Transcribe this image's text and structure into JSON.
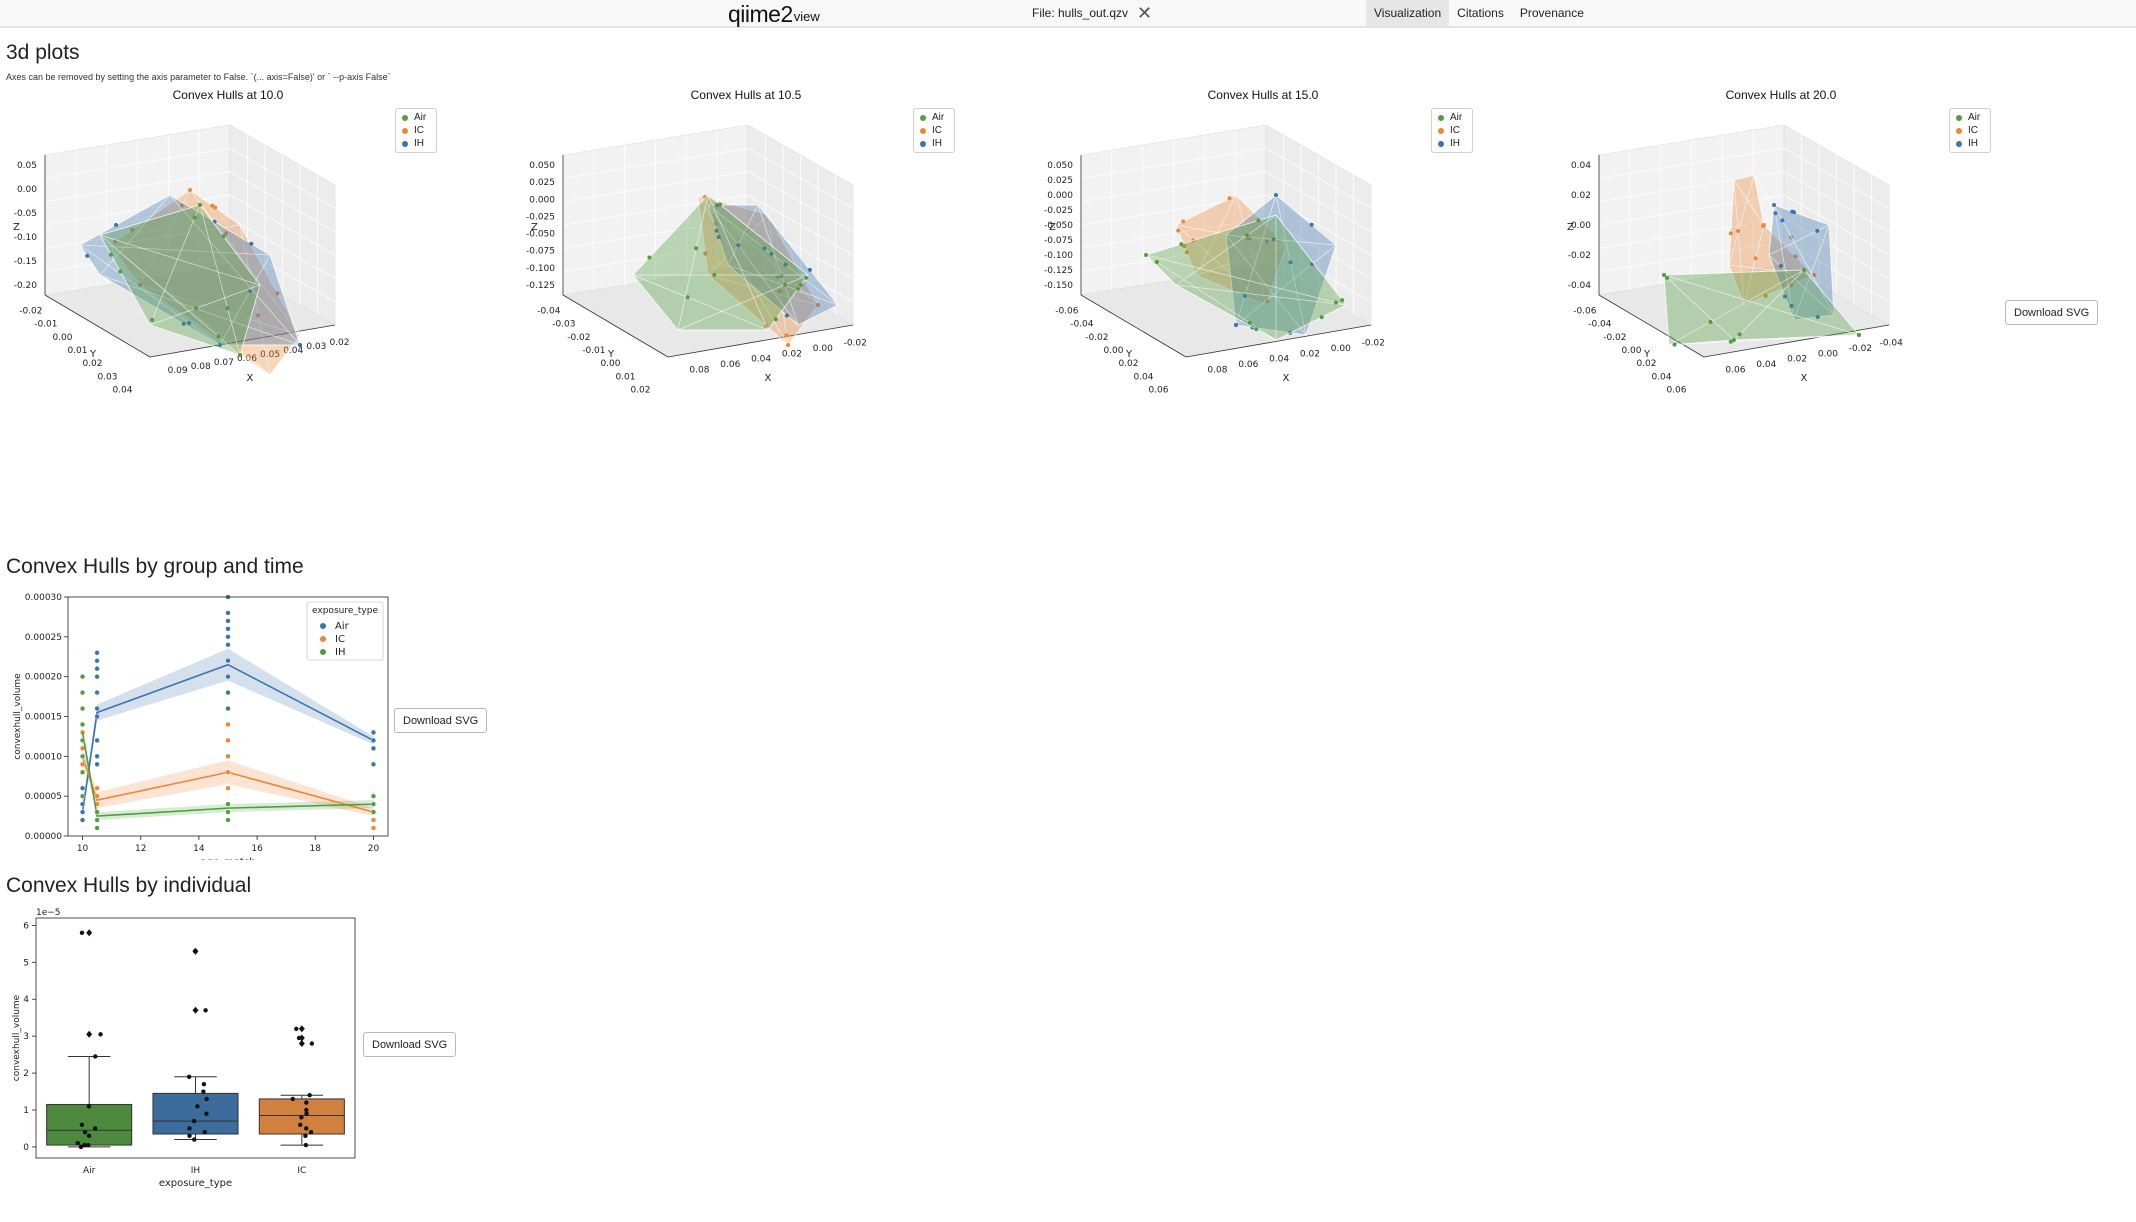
{
  "header": {
    "logo_main": "qiime2",
    "logo_sub": "view",
    "file_label": "File: hulls_out.qzv",
    "tabs": [
      {
        "label": "Visualization",
        "active": true
      },
      {
        "label": "Citations",
        "active": false
      },
      {
        "label": "Provenance",
        "active": false
      }
    ]
  },
  "section_3d": {
    "title": "3d plots",
    "note": "Axes can be removed by setting the axis parameter to False. `(... axis=False)' or ` --p-axis False`",
    "download_label": "Download SVG",
    "legend": [
      "Air",
      "IC",
      "IH"
    ],
    "plots": [
      {
        "title": "Convex Hulls at 10.0",
        "z_ticks": [
          "0.05",
          "0.00",
          "-0.05",
          "-0.10",
          "-0.15",
          "-0.20"
        ],
        "y_ticks": [
          "-0.02",
          "-0.01",
          "0.00",
          "0.01",
          "0.02",
          "0.03",
          "0.04"
        ],
        "x_ticks": [
          "0.09",
          "0.08",
          "0.07",
          "0.06",
          "0.05",
          "0.04",
          "0.03",
          "0.02"
        ],
        "z_label": "Z",
        "y_label": "Y",
        "x_label": "X"
      },
      {
        "title": "Convex Hulls at 10.5",
        "z_ticks": [
          "0.050",
          "0.025",
          "0.000",
          "-0.025",
          "-0.050",
          "-0.075",
          "-0.100",
          "-0.125"
        ],
        "y_ticks": [
          "-0.04",
          "-0.03",
          "-0.02",
          "-0.01",
          "0.00",
          "0.01",
          "0.02"
        ],
        "x_ticks": [
          "0.08",
          "0.06",
          "0.04",
          "0.02",
          "0.00",
          "-0.02"
        ],
        "z_label": "Z",
        "y_label": "Y",
        "x_label": "X"
      },
      {
        "title": "Convex Hulls at 15.0",
        "z_ticks": [
          "0.050",
          "0.025",
          "0.000",
          "-0.025",
          "-0.050",
          "-0.075",
          "-0.100",
          "-0.125",
          "-0.150"
        ],
        "y_ticks": [
          "-0.06",
          "-0.04",
          "-0.02",
          "0.00",
          "0.02",
          "0.04",
          "0.06"
        ],
        "x_ticks": [
          "0.08",
          "0.06",
          "0.04",
          "0.02",
          "0.00",
          "-0.02"
        ],
        "z_label": "Z",
        "y_label": "Y",
        "x_label": "X"
      },
      {
        "title": "Convex Hulls at 20.0",
        "z_ticks": [
          "0.04",
          "0.02",
          "0.00",
          "-0.02",
          "-0.04"
        ],
        "y_ticks": [
          "-0.06",
          "-0.04",
          "-0.02",
          "0.00",
          "0.02",
          "0.04",
          "0.06"
        ],
        "x_ticks": [
          "0.06",
          "0.04",
          "0.02",
          "0.00",
          "-0.02",
          "-0.04"
        ],
        "z_label": "Z",
        "y_label": "Y",
        "x_label": "X"
      }
    ]
  },
  "section_time": {
    "title": "Convex Hulls by group and time",
    "download_label": "Download SVG"
  },
  "section_individual": {
    "title": "Convex Hulls by individual",
    "download_label": "Download SVG"
  },
  "colors": {
    "Air": "#3a75af",
    "IC": "#ef8636",
    "IH": "#519e3e",
    "green_box": "#4e8a3e",
    "blue_box": "#3b6c9b",
    "orange_box": "#d2803d"
  },
  "chart_data": [
    {
      "type": "line",
      "title": "",
      "xlabel": "age_match",
      "ylabel": "convexhull_volume",
      "xlim": [
        9.5,
        20.5
      ],
      "ylim": [
        0,
        0.0003
      ],
      "x_ticks": [
        "10",
        "12",
        "14",
        "16",
        "18",
        "20"
      ],
      "y_ticks": [
        "0.00000",
        "0.00005",
        "0.00010",
        "0.00015",
        "0.00020",
        "0.00025",
        "0.00030"
      ],
      "legend_title": "exposure_type",
      "legend_position": "top-right",
      "x": [
        10,
        10.5,
        15,
        20
      ],
      "series": [
        {
          "name": "Air",
          "values": [
            3e-05,
            0.000155,
            0.000215,
            0.00012
          ],
          "ci_low": [
            2.2e-05,
            0.000145,
            0.000195,
            0.000115
          ],
          "ci_high": [
            4e-05,
            0.000165,
            0.000235,
            0.000125
          ],
          "points": [
            [
              10,
              2e-05
            ],
            [
              10,
              3e-05
            ],
            [
              10,
              4e-05
            ],
            [
              10,
              6e-05
            ],
            [
              10,
              9e-05
            ],
            [
              10.5,
              9e-05
            ],
            [
              10.5,
              0.0001
            ],
            [
              10.5,
              0.00012
            ],
            [
              10.5,
              0.00015
            ],
            [
              10.5,
              0.00016
            ],
            [
              10.5,
              0.00018
            ],
            [
              10.5,
              0.0002
            ],
            [
              10.5,
              0.00021
            ],
            [
              10.5,
              0.00022
            ],
            [
              10.5,
              0.00023
            ],
            [
              15,
              0.00016
            ],
            [
              15,
              0.00018
            ],
            [
              15,
              0.0002
            ],
            [
              15,
              0.00022
            ],
            [
              15,
              0.00024
            ],
            [
              15,
              0.00025
            ],
            [
              15,
              0.00026
            ],
            [
              15,
              0.00027
            ],
            [
              15,
              0.00028
            ],
            [
              15,
              0.0003
            ],
            [
              20,
              9e-05
            ],
            [
              20,
              0.00011
            ],
            [
              20,
              0.00012
            ],
            [
              20,
              0.00013
            ]
          ]
        },
        {
          "name": "IC",
          "values": [
            0.0001,
            4.5e-05,
            8e-05,
            3e-05
          ],
          "ci_low": [
            9e-05,
            3.5e-05,
            6.5e-05,
            2.5e-05
          ],
          "ci_high": [
            0.00011,
            5.5e-05,
            9.5e-05,
            3.5e-05
          ],
          "points": [
            [
              10,
              8e-05
            ],
            [
              10,
              9e-05
            ],
            [
              10,
              0.0001
            ],
            [
              10,
              0.00011
            ],
            [
              10,
              0.00012
            ],
            [
              10,
              0.00013
            ],
            [
              10.5,
              2e-05
            ],
            [
              10.5,
              3e-05
            ],
            [
              10.5,
              4e-05
            ],
            [
              10.5,
              5e-05
            ],
            [
              10.5,
              6e-05
            ],
            [
              15,
              4e-05
            ],
            [
              15,
              6e-05
            ],
            [
              15,
              8e-05
            ],
            [
              15,
              0.0001
            ],
            [
              15,
              0.00012
            ],
            [
              15,
              0.00014
            ],
            [
              20,
              1e-05
            ],
            [
              20,
              2e-05
            ],
            [
              20,
              3e-05
            ],
            [
              20,
              4e-05
            ]
          ]
        },
        {
          "name": "IH",
          "values": [
            0.00013,
            2.5e-05,
            3.5e-05,
            4e-05
          ],
          "ci_low": [
            0.00012,
            2e-05,
            3e-05,
            3.5e-05
          ],
          "ci_high": [
            0.00014,
            3e-05,
            4e-05,
            4.5e-05
          ],
          "points": [
            [
              10,
              5e-05
            ],
            [
              10,
              8e-05
            ],
            [
              10,
              0.0001
            ],
            [
              10,
              0.00012
            ],
            [
              10,
              0.00014
            ],
            [
              10,
              0.00016
            ],
            [
              10,
              0.00018
            ],
            [
              10,
              0.0002
            ],
            [
              10.5,
              1e-05
            ],
            [
              10.5,
              2e-05
            ],
            [
              10.5,
              3e-05
            ],
            [
              15,
              2e-05
            ],
            [
              15,
              3e-05
            ],
            [
              15,
              4e-05
            ],
            [
              20,
              3e-05
            ],
            [
              20,
              4e-05
            ],
            [
              20,
              5e-05
            ]
          ]
        }
      ]
    },
    {
      "type": "box",
      "title": "",
      "xlabel": "exposure_type",
      "ylabel": "convexhull_volume",
      "scale_label": "1e−5",
      "ylim": [
        -0.3,
        6.2
      ],
      "y_ticks": [
        "0",
        "1",
        "2",
        "3",
        "4",
        "5",
        "6"
      ],
      "categories": [
        "Air",
        "IH",
        "IC"
      ],
      "boxes": [
        {
          "name": "Air",
          "q1": 0.05,
          "median": 0.45,
          "q3": 1.15,
          "whisker_low": 0.0,
          "whisker_high": 2.45,
          "fliers": [
            3.05,
            5.8
          ],
          "points": [
            0.0,
            0.05,
            0.05,
            0.1,
            0.3,
            0.4,
            0.5,
            0.6,
            1.1,
            2.45,
            3.05,
            5.8
          ]
        },
        {
          "name": "IH",
          "q1": 0.35,
          "median": 0.7,
          "q3": 1.45,
          "whisker_low": 0.2,
          "whisker_high": 1.9,
          "fliers": [
            3.7,
            5.3
          ],
          "points": [
            0.2,
            0.3,
            0.4,
            0.5,
            0.7,
            0.9,
            1.1,
            1.3,
            1.5,
            1.7,
            1.9,
            3.7,
            5.3
          ]
        },
        {
          "name": "IC",
          "q1": 0.35,
          "median": 0.85,
          "q3": 1.3,
          "whisker_low": 0.05,
          "whisker_high": 1.4,
          "fliers": [
            2.8,
            2.95,
            3.2
          ],
          "points": [
            0.05,
            0.3,
            0.4,
            0.5,
            0.6,
            0.8,
            0.9,
            1.0,
            1.2,
            1.3,
            1.4,
            2.8,
            2.95,
            3.2
          ]
        }
      ]
    }
  ]
}
